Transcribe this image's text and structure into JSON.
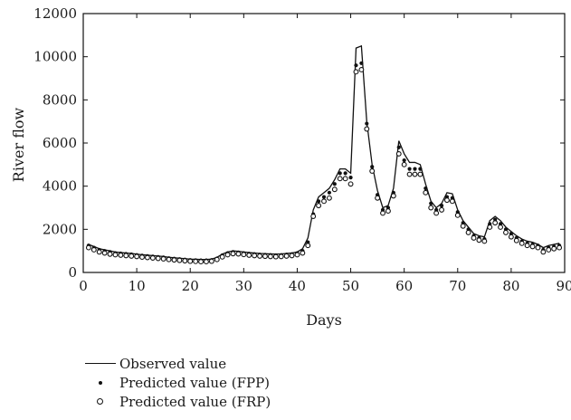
{
  "chart_data": {
    "type": "line",
    "title": "",
    "xlabel": "Days",
    "ylabel": "River flow",
    "xlim": [
      0,
      90
    ],
    "ylim": [
      0,
      12000
    ],
    "xticks": [
      0,
      10,
      20,
      30,
      40,
      50,
      60,
      70,
      80,
      90
    ],
    "yticks": [
      0,
      2000,
      4000,
      6000,
      8000,
      10000,
      12000
    ],
    "grid": false,
    "legend_position": "below",
    "x": [
      1,
      2,
      3,
      4,
      5,
      6,
      7,
      8,
      9,
      10,
      11,
      12,
      13,
      14,
      15,
      16,
      17,
      18,
      19,
      20,
      21,
      22,
      23,
      24,
      25,
      26,
      27,
      28,
      29,
      30,
      31,
      32,
      33,
      34,
      35,
      36,
      37,
      38,
      39,
      40,
      41,
      42,
      43,
      44,
      45,
      46,
      47,
      48,
      49,
      50,
      51,
      52,
      53,
      54,
      55,
      56,
      57,
      58,
      59,
      60,
      61,
      62,
      63,
      64,
      65,
      66,
      67,
      68,
      69,
      70,
      71,
      72,
      73,
      74,
      75,
      76,
      77,
      78,
      79,
      80,
      81,
      82,
      83,
      84,
      85,
      86,
      87,
      88,
      89
    ],
    "series": [
      {
        "name": "Observed value",
        "marker": "line",
        "values": [
          1300,
          1200,
          1100,
          1050,
          1000,
          950,
          920,
          900,
          880,
          850,
          820,
          800,
          780,
          760,
          740,
          700,
          680,
          660,
          640,
          620,
          610,
          600,
          600,
          620,
          700,
          850,
          950,
          1000,
          980,
          950,
          920,
          900,
          880,
          870,
          860,
          850,
          860,
          880,
          900,
          950,
          1100,
          1600,
          2900,
          3500,
          3700,
          3900,
          4300,
          4800,
          4800,
          4600,
          10400,
          10500,
          7000,
          5000,
          3800,
          3000,
          3100,
          3900,
          6100,
          5500,
          5100,
          5100,
          5000,
          4100,
          3300,
          3000,
          3200,
          3700,
          3650,
          2900,
          2400,
          2100,
          1800,
          1700,
          1650,
          2400,
          2600,
          2400,
          2100,
          1900,
          1700,
          1550,
          1450,
          1400,
          1300,
          1150,
          1250,
          1300,
          1350
        ]
      },
      {
        "name": "Predicted value (FPP)",
        "marker": "dot",
        "values": [
          1250,
          1150,
          1050,
          1000,
          950,
          900,
          880,
          860,
          840,
          810,
          780,
          760,
          740,
          720,
          700,
          660,
          640,
          620,
          600,
          580,
          570,
          560,
          560,
          580,
          650,
          800,
          900,
          950,
          930,
          900,
          870,
          850,
          830,
          820,
          810,
          800,
          810,
          830,
          850,
          900,
          1000,
          1400,
          2700,
          3300,
          3500,
          3700,
          4100,
          4600,
          4600,
          4400,
          9600,
          9700,
          6900,
          4900,
          3600,
          2900,
          3000,
          3700,
          5800,
          5200,
          4800,
          4800,
          4800,
          3900,
          3200,
          2900,
          3100,
          3500,
          3450,
          2800,
          2300,
          2000,
          1700,
          1600,
          1550,
          2250,
          2450,
          2250,
          2000,
          1800,
          1600,
          1450,
          1350,
          1300,
          1250,
          1050,
          1150,
          1200,
          1250
        ]
      },
      {
        "name": "Predicted value (FRP)",
        "marker": "circle",
        "values": [
          1150,
          1050,
          950,
          900,
          850,
          820,
          800,
          780,
          760,
          740,
          710,
          690,
          670,
          650,
          630,
          600,
          580,
          560,
          540,
          520,
          510,
          500,
          500,
          520,
          600,
          720,
          820,
          870,
          860,
          830,
          800,
          780,
          760,
          750,
          740,
          730,
          740,
          760,
          780,
          820,
          900,
          1250,
          2600,
          3100,
          3300,
          3450,
          3850,
          4350,
          4350,
          4100,
          9300,
          9400,
          6650,
          4700,
          3450,
          2750,
          2850,
          3550,
          5500,
          5000,
          4550,
          4550,
          4550,
          3700,
          3000,
          2750,
          2900,
          3350,
          3300,
          2650,
          2150,
          1850,
          1600,
          1500,
          1450,
          2100,
          2300,
          2100,
          1850,
          1650,
          1480,
          1350,
          1250,
          1200,
          1150,
          950,
          1050,
          1100,
          1150
        ]
      }
    ]
  }
}
